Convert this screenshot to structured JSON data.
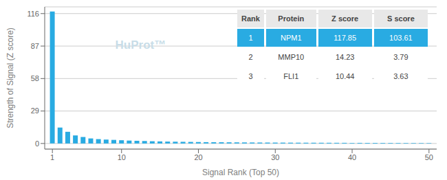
{
  "chart_data": {
    "type": "bar",
    "title": "",
    "xlabel": "Signal Rank (Top 50)",
    "ylabel": "Strength of Signal (Z score)",
    "x": [
      1,
      2,
      3,
      4,
      5,
      6,
      7,
      8,
      9,
      10,
      11,
      12,
      13,
      14,
      15,
      16,
      17,
      18,
      19,
      20,
      21,
      22,
      23,
      24,
      25,
      26,
      27,
      28,
      29,
      30,
      31,
      32,
      33,
      34,
      35,
      36,
      37,
      38,
      39,
      40,
      41,
      42,
      43,
      44,
      45,
      46,
      47,
      48,
      49,
      50
    ],
    "values": [
      117.85,
      14.23,
      10.44,
      7.2,
      5.8,
      4.5,
      3.9,
      3.5,
      3.2,
      2.9,
      2.6,
      2.4,
      2.2,
      2.0,
      1.85,
      1.7,
      1.6,
      1.5,
      1.4,
      1.3,
      1.2,
      1.15,
      1.1,
      1.05,
      1.0,
      0.95,
      0.9,
      0.87,
      0.84,
      0.81,
      0.78,
      0.75,
      0.72,
      0.7,
      0.68,
      0.66,
      0.64,
      0.62,
      0.6,
      0.58,
      0.56,
      0.54,
      0.52,
      0.5,
      0.48,
      0.46,
      0.44,
      0.42,
      0.4,
      0.38
    ],
    "color": "#29ABE2",
    "xlim": [
      0,
      51
    ],
    "xticks": [
      1,
      10,
      20,
      30,
      40,
      50
    ],
    "ylim": [
      -5,
      122
    ],
    "yticks": [
      0,
      29,
      58,
      87,
      116
    ],
    "grid": true,
    "annotations": [
      {
        "text": "HuProt™",
        "color": "#c8dde8"
      }
    ],
    "table": {
      "header": [
        "Rank",
        "Protein",
        "Z score",
        "S score"
      ],
      "rows": [
        [
          "1",
          "NPM1",
          "117.85",
          "103.61"
        ],
        [
          "2",
          "MMP10",
          "14.23",
          "3.79"
        ],
        [
          "3",
          "FLI1",
          "10.44",
          "3.63"
        ]
      ]
    }
  }
}
